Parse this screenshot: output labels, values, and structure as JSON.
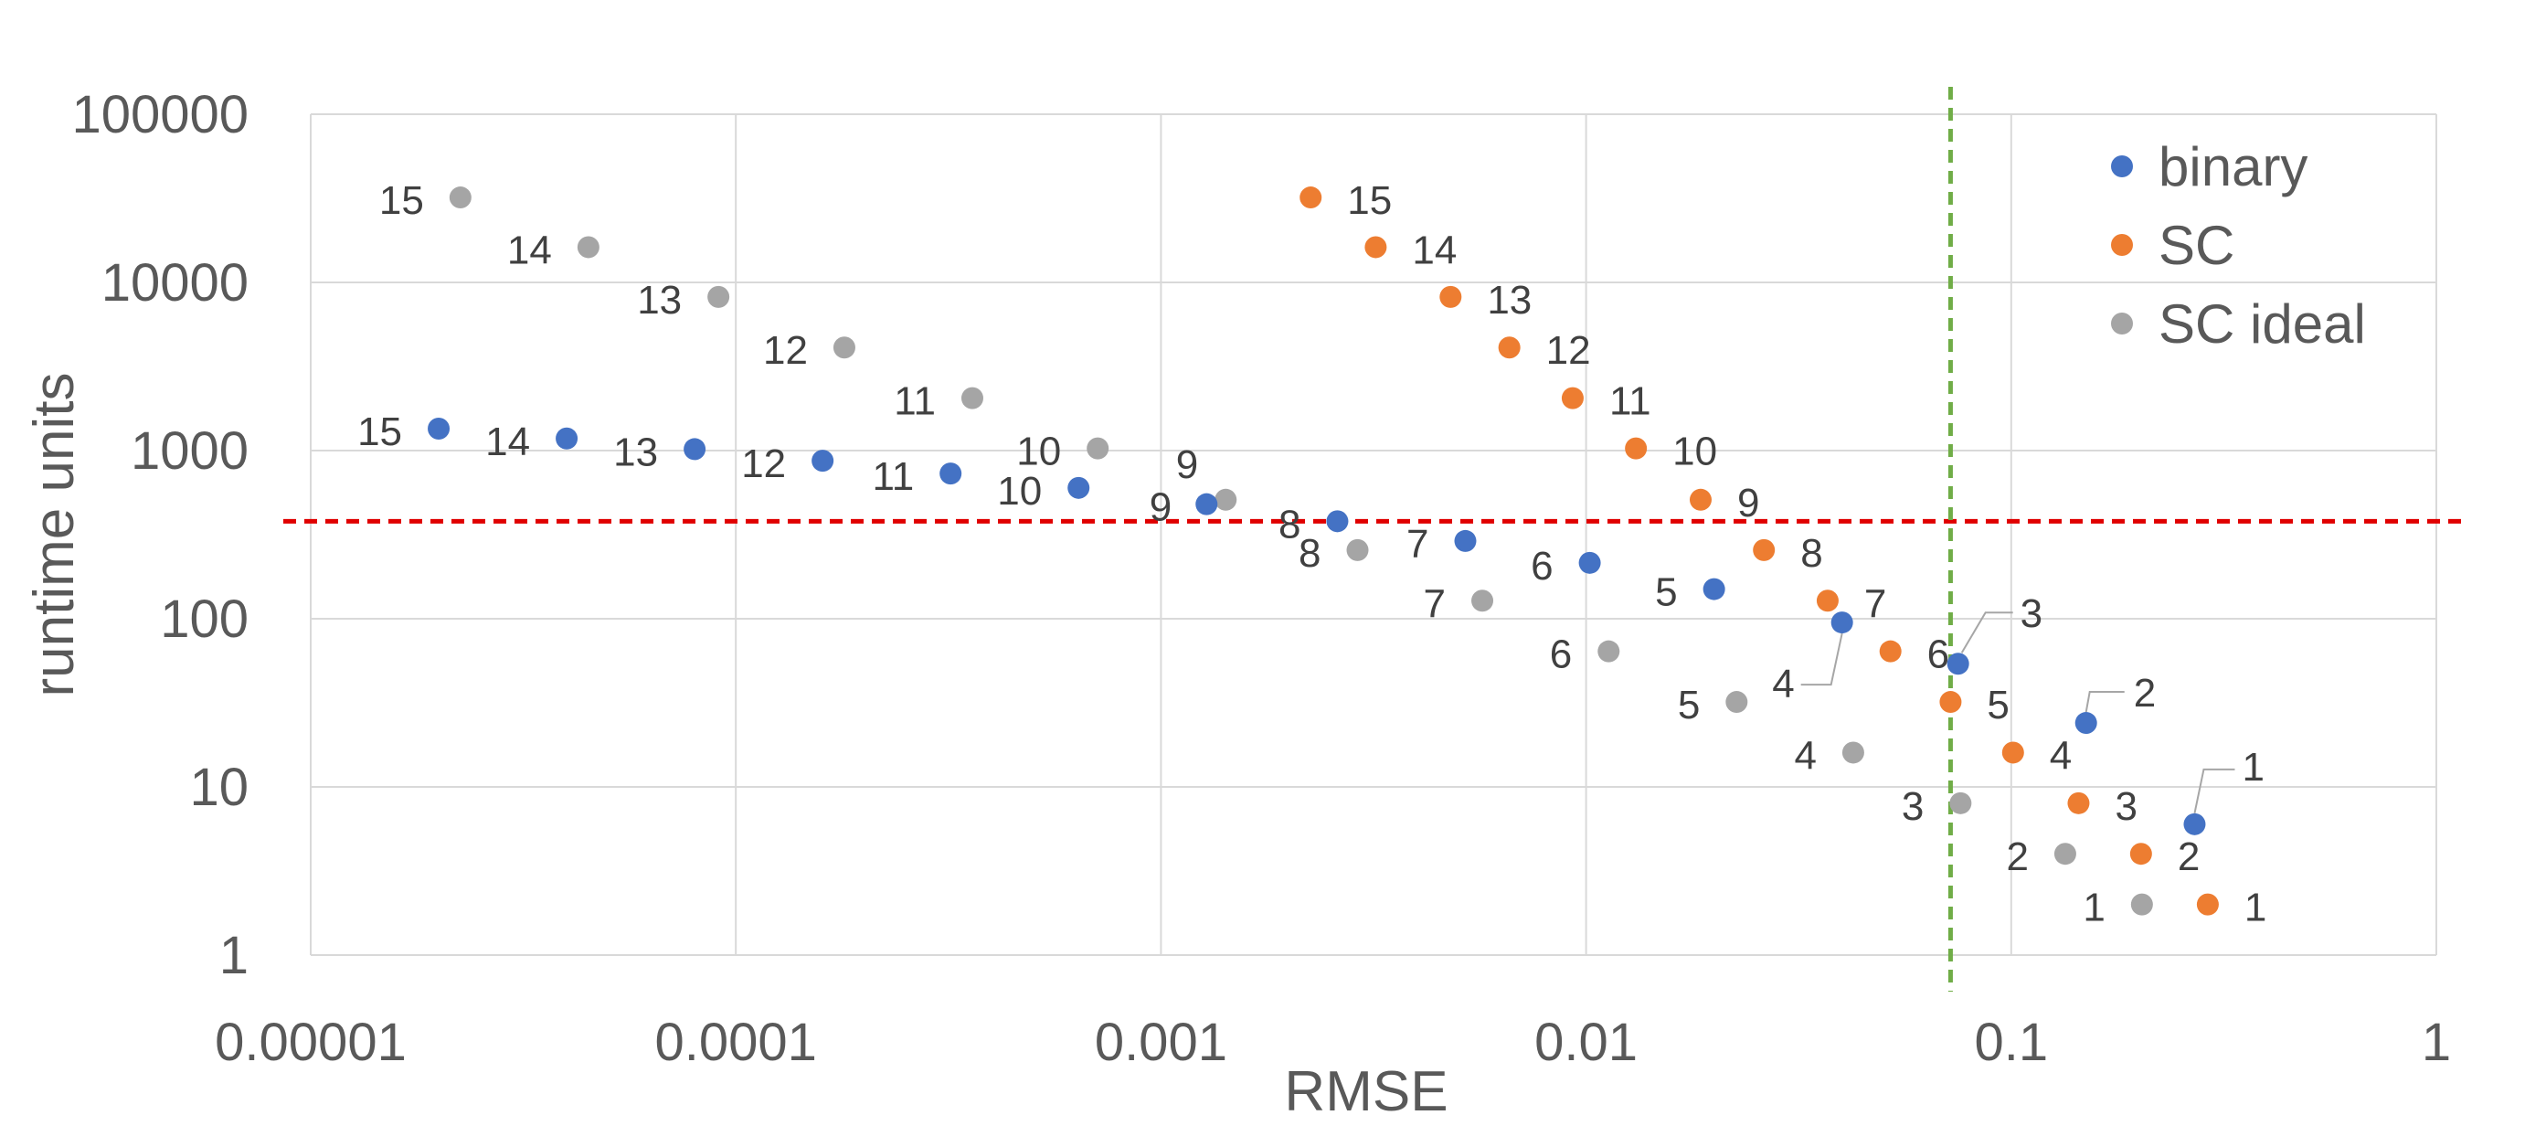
{
  "chart_data": {
    "type": "scatter",
    "xscale": "log",
    "yscale": "log",
    "xlabel": "RMSE",
    "ylabel": "runtime units",
    "xlim": [
      1e-05,
      1
    ],
    "ylim": [
      1,
      100000
    ],
    "xticks": [
      1e-05,
      0.0001,
      0.001,
      0.01,
      0.1,
      1
    ],
    "xtick_labels": [
      "0.00001",
      "0.0001",
      "0.001",
      "0.01",
      "0.1",
      "1"
    ],
    "yticks": [
      1,
      10,
      100,
      1000,
      10000,
      100000
    ],
    "ytick_labels": [
      "1",
      "10",
      "100",
      "1000",
      "10000",
      "100000"
    ],
    "grid": true,
    "legend": "top-right",
    "series": [
      {
        "name": "binary",
        "color": "#4472C4",
        "points": [
          {
            "x": 2e-05,
            "y": 1350,
            "label": "15"
          },
          {
            "x": 4e-05,
            "y": 1180,
            "label": "14"
          },
          {
            "x": 8e-05,
            "y": 1020,
            "label": "13"
          },
          {
            "x": 0.00016,
            "y": 870,
            "label": "12"
          },
          {
            "x": 0.00032,
            "y": 730,
            "label": "11"
          },
          {
            "x": 0.00064,
            "y": 600,
            "label": "10"
          },
          {
            "x": 0.00128,
            "y": 480,
            "label": "9"
          },
          {
            "x": 0.0026,
            "y": 380,
            "label": "8"
          },
          {
            "x": 0.0052,
            "y": 290,
            "label": "7"
          },
          {
            "x": 0.0102,
            "y": 215,
            "label": "6"
          },
          {
            "x": 0.02,
            "y": 150,
            "label": "5"
          },
          {
            "x": 0.04,
            "y": 95,
            "label": "4"
          },
          {
            "x": 0.075,
            "y": 54,
            "label": "3"
          },
          {
            "x": 0.15,
            "y": 24,
            "label": "2"
          },
          {
            "x": 0.27,
            "y": 6,
            "label": "1"
          }
        ]
      },
      {
        "name": "SC",
        "color": "#ED7D31",
        "points": [
          {
            "x": 0.00225,
            "y": 32000,
            "label": "15"
          },
          {
            "x": 0.0032,
            "y": 16200,
            "label": "14"
          },
          {
            "x": 0.0048,
            "y": 8200,
            "label": "13"
          },
          {
            "x": 0.0066,
            "y": 4100,
            "label": "12"
          },
          {
            "x": 0.0093,
            "y": 2050,
            "label": "11"
          },
          {
            "x": 0.0131,
            "y": 1030,
            "label": "10"
          },
          {
            "x": 0.0186,
            "y": 510,
            "label": "9"
          },
          {
            "x": 0.0262,
            "y": 256,
            "label": "8"
          },
          {
            "x": 0.037,
            "y": 128,
            "label": "7"
          },
          {
            "x": 0.052,
            "y": 64,
            "label": "6"
          },
          {
            "x": 0.072,
            "y": 32,
            "label": "5"
          },
          {
            "x": 0.101,
            "y": 16,
            "label": "4"
          },
          {
            "x": 0.144,
            "y": 8,
            "label": "3"
          },
          {
            "x": 0.202,
            "y": 4,
            "label": "2"
          },
          {
            "x": 0.29,
            "y": 2,
            "label": "1"
          }
        ]
      },
      {
        "name": "SC ideal",
        "color": "#A5A5A5",
        "points": [
          {
            "x": 2.25e-05,
            "y": 32000,
            "label": "15"
          },
          {
            "x": 4.5e-05,
            "y": 16200,
            "label": "14"
          },
          {
            "x": 9.1e-05,
            "y": 8200,
            "label": "13"
          },
          {
            "x": 0.00018,
            "y": 4100,
            "label": "12"
          },
          {
            "x": 0.00036,
            "y": 2050,
            "label": "11"
          },
          {
            "x": 0.00071,
            "y": 1030,
            "label": "10"
          },
          {
            "x": 0.00142,
            "y": 510,
            "label": "9"
          },
          {
            "x": 0.0029,
            "y": 256,
            "label": "8"
          },
          {
            "x": 0.0057,
            "y": 128,
            "label": "7"
          },
          {
            "x": 0.0113,
            "y": 64,
            "label": "6"
          },
          {
            "x": 0.0226,
            "y": 32,
            "label": "5"
          },
          {
            "x": 0.0425,
            "y": 16,
            "label": "4"
          },
          {
            "x": 0.076,
            "y": 8,
            "label": "3"
          },
          {
            "x": 0.134,
            "y": 4,
            "label": "2"
          },
          {
            "x": 0.203,
            "y": 2,
            "label": "1"
          }
        ]
      }
    ],
    "reference_lines": [
      {
        "orientation": "horizontal",
        "value": 380,
        "color": "#E00000",
        "style": "dashed"
      },
      {
        "orientation": "vertical",
        "value": 0.072,
        "color": "#70AD47",
        "style": "dashed"
      }
    ]
  }
}
